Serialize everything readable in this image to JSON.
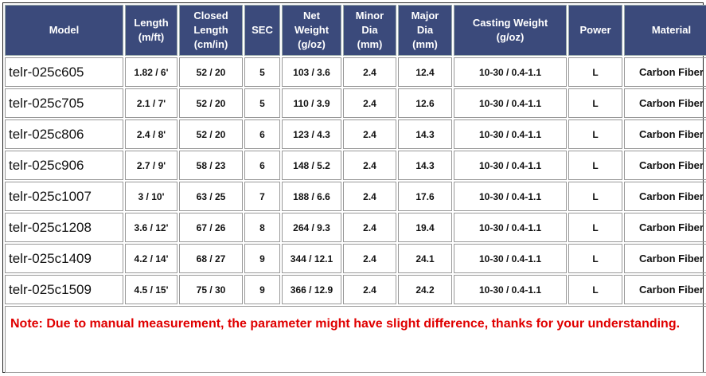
{
  "table": {
    "headers": [
      "Model",
      "Length\n(m/ft)",
      "Closed\nLength\n(cm/in)",
      "SEC",
      "Net\nWeight\n(g/oz)",
      "Minor\nDia\n(mm)",
      "Major\nDia\n(mm)",
      "Casting Weight\n(g/oz)",
      "Power",
      "Material"
    ],
    "rows": [
      [
        "telr-025c605",
        "1.82 / 6'",
        "52 / 20",
        "5",
        "103 / 3.6",
        "2.4",
        "12.4",
        "10-30 / 0.4-1.1",
        "L",
        "Carbon Fiber"
      ],
      [
        "telr-025c705",
        "2.1 / 7'",
        "52 / 20",
        "5",
        "110 / 3.9",
        "2.4",
        "12.6",
        "10-30 / 0.4-1.1",
        "L",
        "Carbon Fiber"
      ],
      [
        "telr-025c806",
        "2.4 / 8'",
        "52 / 20",
        "6",
        "123 / 4.3",
        "2.4",
        "14.3",
        "10-30 / 0.4-1.1",
        "L",
        "Carbon Fiber"
      ],
      [
        "telr-025c906",
        "2.7 / 9'",
        "58 / 23",
        "6",
        "148 / 5.2",
        "2.4",
        "14.3",
        "10-30 / 0.4-1.1",
        "L",
        "Carbon Fiber"
      ],
      [
        "telr-025c1007",
        "3 / 10'",
        "63 / 25",
        "7",
        "188 / 6.6",
        "2.4",
        "17.6",
        "10-30 / 0.4-1.1",
        "L",
        "Carbon Fiber"
      ],
      [
        "telr-025c1208",
        "3.6 / 12'",
        "67 / 26",
        "8",
        "264 / 9.3",
        "2.4",
        "19.4",
        "10-30 / 0.4-1.1",
        "L",
        "Carbon Fiber"
      ],
      [
        "telr-025c1409",
        "4.2 / 14'",
        "68 / 27",
        "9",
        "344 / 12.1",
        "2.4",
        "24.1",
        "10-30 / 0.4-1.1",
        "L",
        "Carbon Fiber"
      ],
      [
        "telr-025c1509",
        "4.5 / 15'",
        "75 / 30",
        "9",
        "366 / 12.9",
        "2.4",
        "24.2",
        "10-30 / 0.4-1.1",
        "L",
        "Carbon Fiber"
      ]
    ],
    "note": "Note: Due to manual measurement, the parameter might have slight difference, thanks for your understanding."
  }
}
